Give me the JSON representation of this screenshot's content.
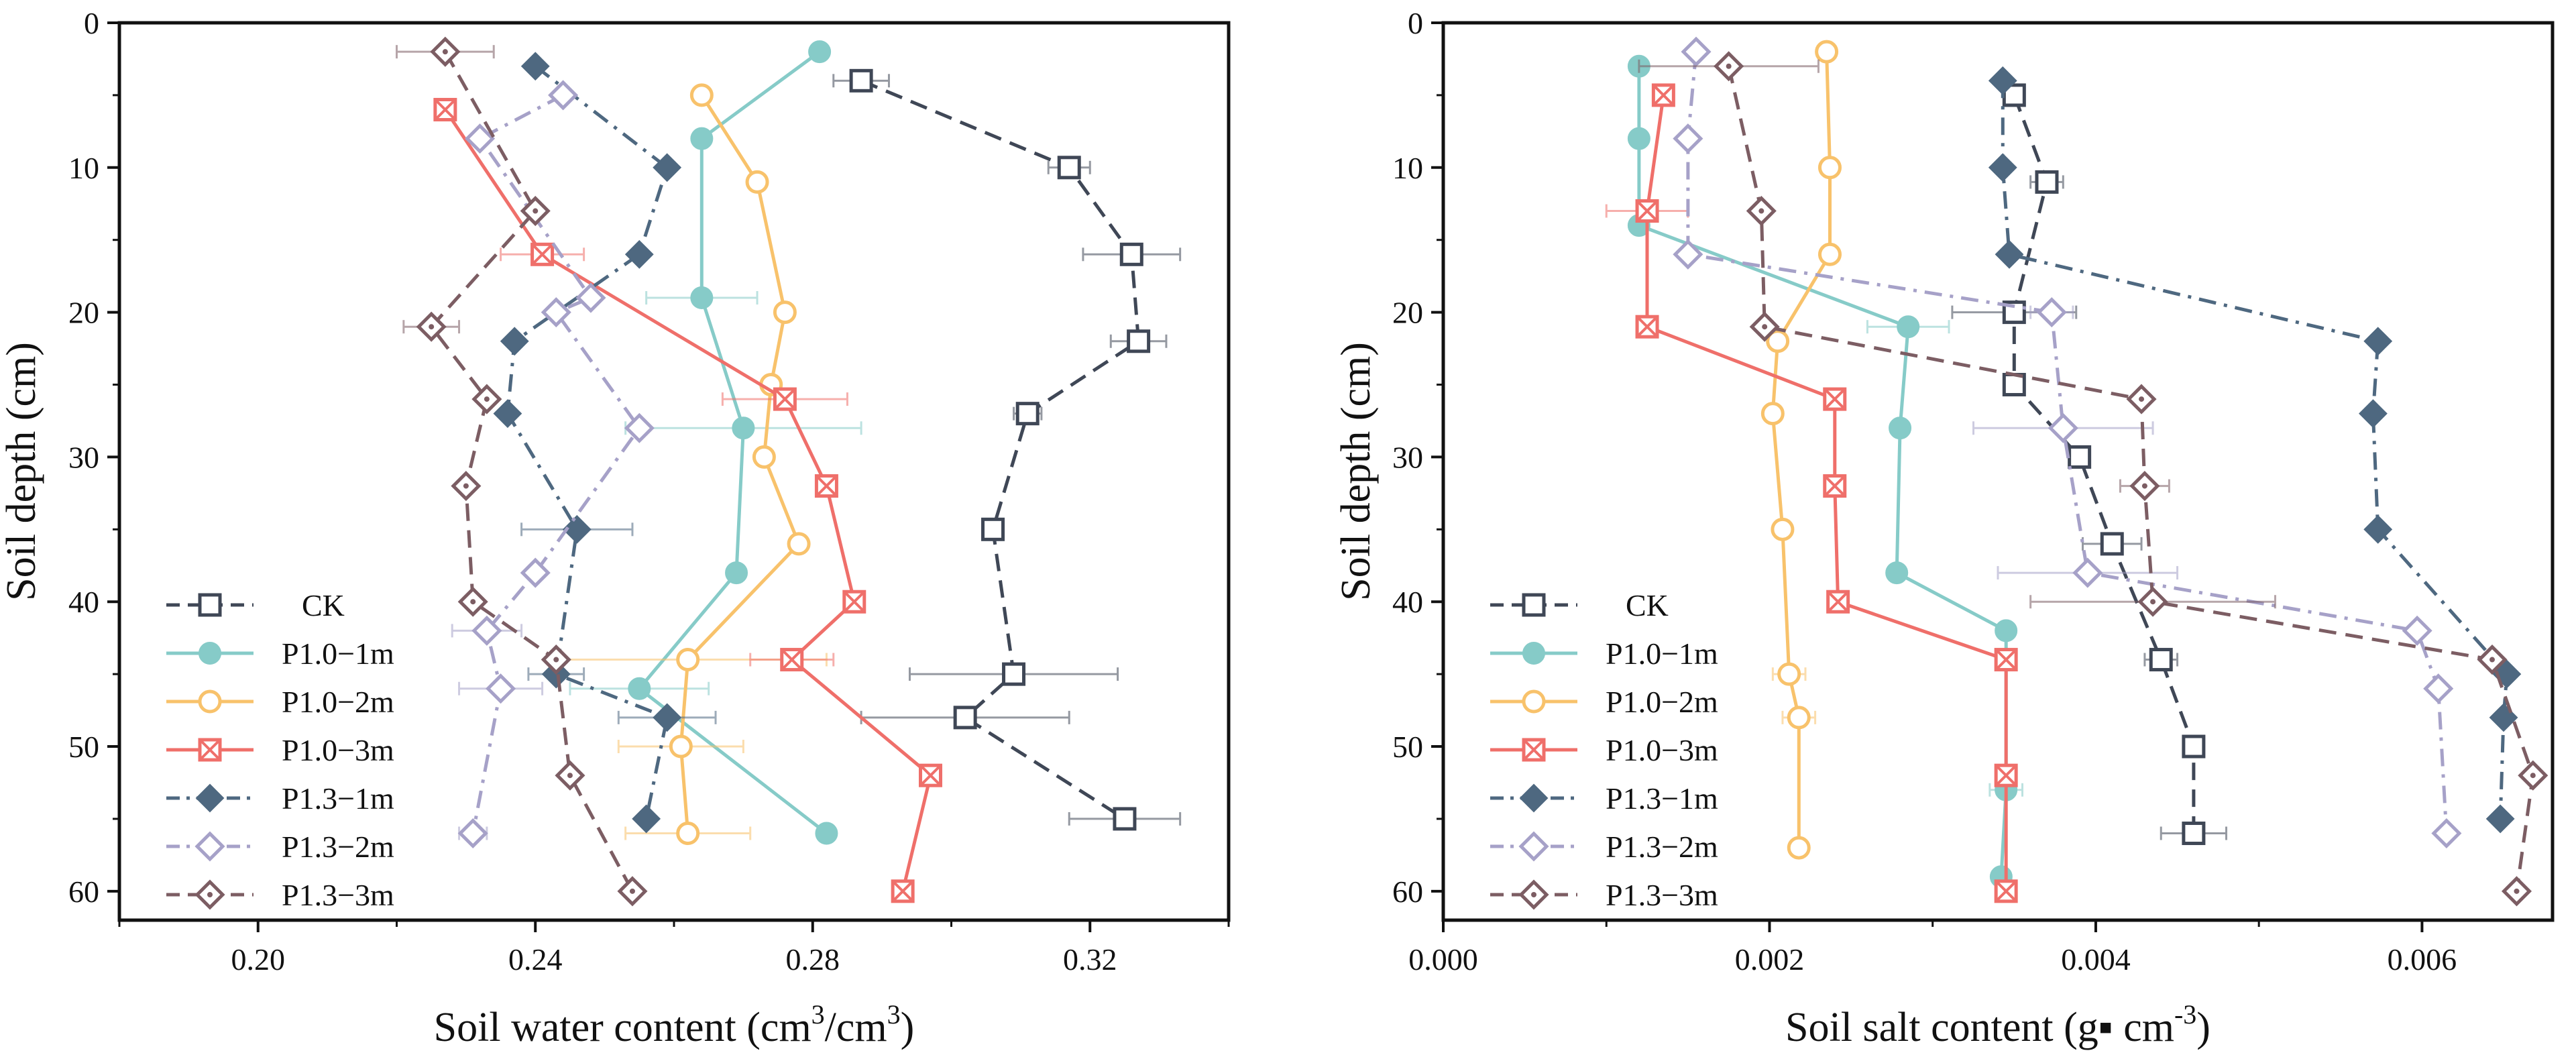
{
  "chart_data": [
    {
      "type": "line",
      "orientation": "vertical-profile",
      "xlabel": "Soil water content (cm³/cm³)",
      "xlabel_parts": {
        "pre": "Soil water content (cm",
        "sup1": "3",
        "mid": "/cm",
        "sup2": "3",
        "post": ")"
      },
      "ylabel": "Soil depth (cm)",
      "xlim": [
        0.18,
        0.34
      ],
      "ylim": [
        0,
        62
      ],
      "y_inverted": true,
      "xticks": [
        0.2,
        0.24,
        0.28,
        0.32
      ],
      "xtick_labels": [
        "0.20",
        "0.24",
        "0.28",
        "0.32"
      ],
      "yticks": [
        0,
        10,
        20,
        30,
        40,
        50,
        60
      ],
      "ytick_labels": [
        "0",
        "10",
        "20",
        "30",
        "40",
        "50",
        "60"
      ],
      "grid": false,
      "legend_position": "bottom-left",
      "series": [
        {
          "name": "CK",
          "color": "#3f4756",
          "marker": "square-open",
          "dash": "dash",
          "points": [
            {
              "x": 0.287,
              "y": 4,
              "err": 0.004
            },
            {
              "x": 0.317,
              "y": 10,
              "err": 0.003
            },
            {
              "x": 0.326,
              "y": 16,
              "err": 0.007
            },
            {
              "x": 0.327,
              "y": 22,
              "err": 0.004
            },
            {
              "x": 0.311,
              "y": 27,
              "err": 0.002
            },
            {
              "x": 0.306,
              "y": 35,
              "err": 0
            },
            {
              "x": 0.309,
              "y": 45,
              "err": 0.015
            },
            {
              "x": 0.302,
              "y": 48,
              "err": 0.015
            },
            {
              "x": 0.325,
              "y": 55,
              "err": 0.008
            }
          ]
        },
        {
          "name": "P1.0−1m",
          "color": "#86cbc8",
          "marker": "circle-filled",
          "dash": "solid",
          "points": [
            {
              "x": 0.281,
              "y": 2,
              "err": 0
            },
            {
              "x": 0.264,
              "y": 8,
              "err": 0
            },
            {
              "x": 0.264,
              "y": 19,
              "err": 0.008
            },
            {
              "x": 0.27,
              "y": 28,
              "err": 0.017
            },
            {
              "x": 0.269,
              "y": 38,
              "err": 0
            },
            {
              "x": 0.255,
              "y": 46,
              "err": 0.01
            },
            {
              "x": 0.282,
              "y": 56,
              "err": 0
            }
          ]
        },
        {
          "name": "P1.0−2m",
          "color": "#f8c26b",
          "marker": "circle-open",
          "dash": "solid",
          "points": [
            {
              "x": 0.264,
              "y": 5,
              "err": 0
            },
            {
              "x": 0.272,
              "y": 11,
              "err": 0
            },
            {
              "x": 0.276,
              "y": 20,
              "err": 0
            },
            {
              "x": 0.274,
              "y": 25,
              "err": 0
            },
            {
              "x": 0.273,
              "y": 30,
              "err": 0
            },
            {
              "x": 0.278,
              "y": 36,
              "err": 0
            },
            {
              "x": 0.262,
              "y": 44,
              "err": 0.02
            },
            {
              "x": 0.261,
              "y": 50,
              "err": 0.009
            },
            {
              "x": 0.262,
              "y": 56,
              "err": 0.009
            }
          ]
        },
        {
          "name": "P1.0−3m",
          "color": "#ef6f6a",
          "marker": "square-x",
          "dash": "solid",
          "points": [
            {
              "x": 0.227,
              "y": 6,
              "err": 0
            },
            {
              "x": 0.241,
              "y": 16,
              "err": 0.006
            },
            {
              "x": 0.276,
              "y": 26,
              "err": 0.009
            },
            {
              "x": 0.282,
              "y": 32,
              "err": 0
            },
            {
              "x": 0.286,
              "y": 40,
              "err": 0
            },
            {
              "x": 0.277,
              "y": 44,
              "err": 0.006
            },
            {
              "x": 0.297,
              "y": 52,
              "err": 0
            },
            {
              "x": 0.293,
              "y": 60,
              "err": 0
            }
          ]
        },
        {
          "name": "P1.3−1m",
          "color": "#4e6880",
          "marker": "diamond-filled",
          "dash": "dashdot",
          "points": [
            {
              "x": 0.24,
              "y": 3,
              "err": 0
            },
            {
              "x": 0.259,
              "y": 10,
              "err": 0
            },
            {
              "x": 0.255,
              "y": 16,
              "err": 0
            },
            {
              "x": 0.237,
              "y": 22,
              "err": 0
            },
            {
              "x": 0.236,
              "y": 27,
              "err": 0
            },
            {
              "x": 0.246,
              "y": 35,
              "err": 0.008
            },
            {
              "x": 0.243,
              "y": 45,
              "err": 0.004
            },
            {
              "x": 0.259,
              "y": 48,
              "err": 0.007
            },
            {
              "x": 0.256,
              "y": 55,
              "err": 0
            }
          ]
        },
        {
          "name": "P1.3−2m",
          "color": "#a6a1c8",
          "marker": "diamond-open",
          "dash": "dashdot",
          "points": [
            {
              "x": 0.244,
              "y": 5,
              "err": 0
            },
            {
              "x": 0.232,
              "y": 8,
              "err": 0
            },
            {
              "x": 0.248,
              "y": 19,
              "err": 0
            },
            {
              "x": 0.243,
              "y": 20,
              "err": 0
            },
            {
              "x": 0.255,
              "y": 28,
              "err": 0
            },
            {
              "x": 0.24,
              "y": 38,
              "err": 0
            },
            {
              "x": 0.233,
              "y": 42,
              "err": 0.005
            },
            {
              "x": 0.235,
              "y": 46,
              "err": 0.006
            },
            {
              "x": 0.231,
              "y": 56,
              "err": 0.002
            }
          ]
        },
        {
          "name": "P1.3−3m",
          "color": "#7c5d63",
          "marker": "diamond-dot",
          "dash": "dash",
          "points": [
            {
              "x": 0.227,
              "y": 2,
              "err": 0.007
            },
            {
              "x": 0.24,
              "y": 13,
              "err": 0
            },
            {
              "x": 0.225,
              "y": 21,
              "err": 0.004
            },
            {
              "x": 0.233,
              "y": 26,
              "err": 0
            },
            {
              "x": 0.23,
              "y": 32,
              "err": 0
            },
            {
              "x": 0.231,
              "y": 40,
              "err": 0
            },
            {
              "x": 0.243,
              "y": 44,
              "err": 0
            },
            {
              "x": 0.245,
              "y": 52,
              "err": 0
            },
            {
              "x": 0.254,
              "y": 60,
              "err": 0
            }
          ]
        }
      ]
    },
    {
      "type": "line",
      "orientation": "vertical-profile",
      "xlabel": "Soil salt content (g▪ cm⁻³)",
      "xlabel_parts": {
        "pre": "Soil salt content (g",
        "bullet": "▪",
        "mid": " cm",
        "sup": "-3",
        "post": ")"
      },
      "ylabel": "Soil depth (cm)",
      "xlim": [
        0,
        0.0068
      ],
      "ylim": [
        0,
        62
      ],
      "y_inverted": true,
      "xticks": [
        0,
        0.002,
        0.004,
        0.006
      ],
      "xtick_labels": [
        "0.000",
        "0.002",
        "0.004",
        "0.006"
      ],
      "yticks": [
        0,
        10,
        20,
        30,
        40,
        50,
        60
      ],
      "ytick_labels": [
        "0",
        "10",
        "20",
        "30",
        "40",
        "50",
        "60"
      ],
      "grid": false,
      "legend_position": "bottom-left",
      "series": [
        {
          "name": "CK",
          "color": "#3f4756",
          "marker": "square-open",
          "dash": "dash",
          "points": [
            {
              "x": 0.0035,
              "y": 5,
              "err": 6e-05
            },
            {
              "x": 0.0037,
              "y": 11,
              "err": 0.0001
            },
            {
              "x": 0.0035,
              "y": 20,
              "err": 0.00038
            },
            {
              "x": 0.0035,
              "y": 25,
              "err": 0
            },
            {
              "x": 0.0039,
              "y": 30,
              "err": 0
            },
            {
              "x": 0.0041,
              "y": 36,
              "err": 0.00018
            },
            {
              "x": 0.0044,
              "y": 44,
              "err": 0.0001
            },
            {
              "x": 0.0046,
              "y": 50,
              "err": 0
            },
            {
              "x": 0.0046,
              "y": 56,
              "err": 0.0002
            }
          ]
        },
        {
          "name": "P1.0−1m",
          "color": "#86cbc8",
          "marker": "circle-filled",
          "dash": "solid",
          "points": [
            {
              "x": 0.0012,
              "y": 3,
              "err": 0
            },
            {
              "x": 0.0012,
              "y": 8,
              "err": 0
            },
            {
              "x": 0.0012,
              "y": 14,
              "err": 0
            },
            {
              "x": 0.00285,
              "y": 21,
              "err": 0.00025
            },
            {
              "x": 0.0028,
              "y": 28,
              "err": 0
            },
            {
              "x": 0.00278,
              "y": 38,
              "err": 0
            },
            {
              "x": 0.00345,
              "y": 42,
              "err": 0
            },
            {
              "x": 0.00345,
              "y": 53,
              "err": 0.0001
            },
            {
              "x": 0.00342,
              "y": 59,
              "err": 0
            }
          ]
        },
        {
          "name": "P1.0−2m",
          "color": "#f8c26b",
          "marker": "circle-open",
          "dash": "solid",
          "points": [
            {
              "x": 0.00235,
              "y": 2,
              "err": 0
            },
            {
              "x": 0.00237,
              "y": 10,
              "err": 0
            },
            {
              "x": 0.00237,
              "y": 16,
              "err": 0
            },
            {
              "x": 0.00205,
              "y": 22,
              "err": 0
            },
            {
              "x": 0.00202,
              "y": 27,
              "err": 0
            },
            {
              "x": 0.00208,
              "y": 35,
              "err": 0
            },
            {
              "x": 0.00212,
              "y": 45,
              "err": 0.0001
            },
            {
              "x": 0.00218,
              "y": 48,
              "err": 0.0001
            },
            {
              "x": 0.00218,
              "y": 57,
              "err": 0
            }
          ]
        },
        {
          "name": "P1.0−3m",
          "color": "#ef6f6a",
          "marker": "square-x",
          "dash": "solid",
          "points": [
            {
              "x": 0.00135,
              "y": 5,
              "err": 0
            },
            {
              "x": 0.00125,
              "y": 13,
              "err": 0.00025
            },
            {
              "x": 0.00125,
              "y": 21,
              "err": 0
            },
            {
              "x": 0.0024,
              "y": 26,
              "err": 0
            },
            {
              "x": 0.0024,
              "y": 32,
              "err": 0
            },
            {
              "x": 0.00242,
              "y": 40,
              "err": 0
            },
            {
              "x": 0.00345,
              "y": 44,
              "err": 0
            },
            {
              "x": 0.00345,
              "y": 52,
              "err": 0
            },
            {
              "x": 0.00345,
              "y": 60,
              "err": 0
            }
          ]
        },
        {
          "name": "P1.3−1m",
          "color": "#4e6880",
          "marker": "diamond-filled",
          "dash": "dashdot",
          "points": [
            {
              "x": 0.00343,
              "y": 4,
              "err": 0
            },
            {
              "x": 0.00343,
              "y": 10,
              "err": 0
            },
            {
              "x": 0.00347,
              "y": 16,
              "err": 0
            },
            {
              "x": 0.00573,
              "y": 22,
              "err": 0
            },
            {
              "x": 0.0057,
              "y": 27,
              "err": 0
            },
            {
              "x": 0.00573,
              "y": 35,
              "err": 0
            },
            {
              "x": 0.00652,
              "y": 45,
              "err": 0
            },
            {
              "x": 0.0065,
              "y": 48,
              "err": 0
            },
            {
              "x": 0.00648,
              "y": 55,
              "err": 0
            }
          ]
        },
        {
          "name": "P1.3−2m",
          "color": "#a6a1c8",
          "marker": "diamond-open",
          "dash": "dashdot",
          "points": [
            {
              "x": 0.00155,
              "y": 2,
              "err": 0
            },
            {
              "x": 0.0015,
              "y": 8,
              "err": 0
            },
            {
              "x": 0.0015,
              "y": 16,
              "err": 0
            },
            {
              "x": 0.00373,
              "y": 20,
              "err": 0.00013
            },
            {
              "x": 0.0038,
              "y": 28,
              "err": 0.00055
            },
            {
              "x": 0.00395,
              "y": 38,
              "err": 0.00055
            },
            {
              "x": 0.00597,
              "y": 42,
              "err": 0
            },
            {
              "x": 0.0061,
              "y": 46,
              "err": 0
            },
            {
              "x": 0.00615,
              "y": 56,
              "err": 0
            }
          ]
        },
        {
          "name": "P1.3−3m",
          "color": "#7c5d63",
          "marker": "diamond-dot",
          "dash": "dash",
          "points": [
            {
              "x": 0.00175,
              "y": 3,
              "err": 0.00055
            },
            {
              "x": 0.00195,
              "y": 13,
              "err": 0
            },
            {
              "x": 0.00197,
              "y": 21,
              "err": 0
            },
            {
              "x": 0.00428,
              "y": 26,
              "err": 0
            },
            {
              "x": 0.0043,
              "y": 32,
              "err": 0.00015
            },
            {
              "x": 0.00435,
              "y": 40,
              "err": 0.00075
            },
            {
              "x": 0.00643,
              "y": 44,
              "err": 0
            },
            {
              "x": 0.00668,
              "y": 52,
              "err": 0
            },
            {
              "x": 0.00658,
              "y": 60,
              "err": 0
            }
          ]
        }
      ]
    }
  ]
}
